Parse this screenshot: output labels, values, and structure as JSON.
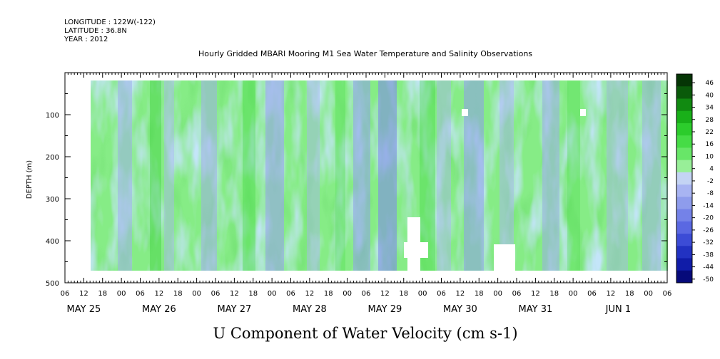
{
  "header": {
    "longitude": "LONGITUDE : 122W(-122)",
    "latitude": "LATITUDE : 36.8N",
    "year": "YEAR : 2012",
    "title": "Hourly Gridded MBARI Mooring M1 Sea Water Temperature and Salinity Observations"
  },
  "chart_data": {
    "type": "heatmap",
    "title": "Hourly Gridded MBARI Mooring M1 Sea Water Temperature and Salinity Observations",
    "xlabel": "U Component of Water Velocity (cm s-1)",
    "ylabel": "DEPTH (m)",
    "y_ticks": [
      "100",
      "200",
      "300",
      "400",
      "500"
    ],
    "ylim": [
      500,
      0
    ],
    "x_hour_ticks": [
      "06",
      "12",
      "18",
      "00",
      "06",
      "12",
      "18",
      "00",
      "06",
      "12",
      "18",
      "00",
      "06",
      "12",
      "18",
      "00",
      "06",
      "12",
      "18",
      "00",
      "06",
      "12",
      "18",
      "00",
      "06",
      "12",
      "18",
      "00",
      "06",
      "12",
      "18",
      "00",
      "06"
    ],
    "x_day_labels": [
      "MAY 25",
      "MAY 26",
      "MAY 27",
      "MAY 28",
      "MAY 29",
      "MAY 30",
      "MAY 31",
      "JUN  1"
    ],
    "colorbar": {
      "labels": [
        "46",
        "40",
        "34",
        "28",
        "22",
        "16",
        "10",
        "4",
        "-2",
        "-8",
        "-14",
        "-20",
        "-26",
        "-32",
        "-38",
        "-44",
        "-50"
      ],
      "min": -50,
      "max": 50,
      "palette": [
        "#053505",
        "#0a5a0a",
        "#118a11",
        "#19b019",
        "#2ccc2c",
        "#46dc46",
        "#68e668",
        "#98ef98",
        "#c4d4f4",
        "#a8b4f2",
        "#8e9cec",
        "#7482e8",
        "#5a68e2",
        "#3c4cd6",
        "#2232c2",
        "#101ca8",
        "#060a7a"
      ]
    }
  }
}
